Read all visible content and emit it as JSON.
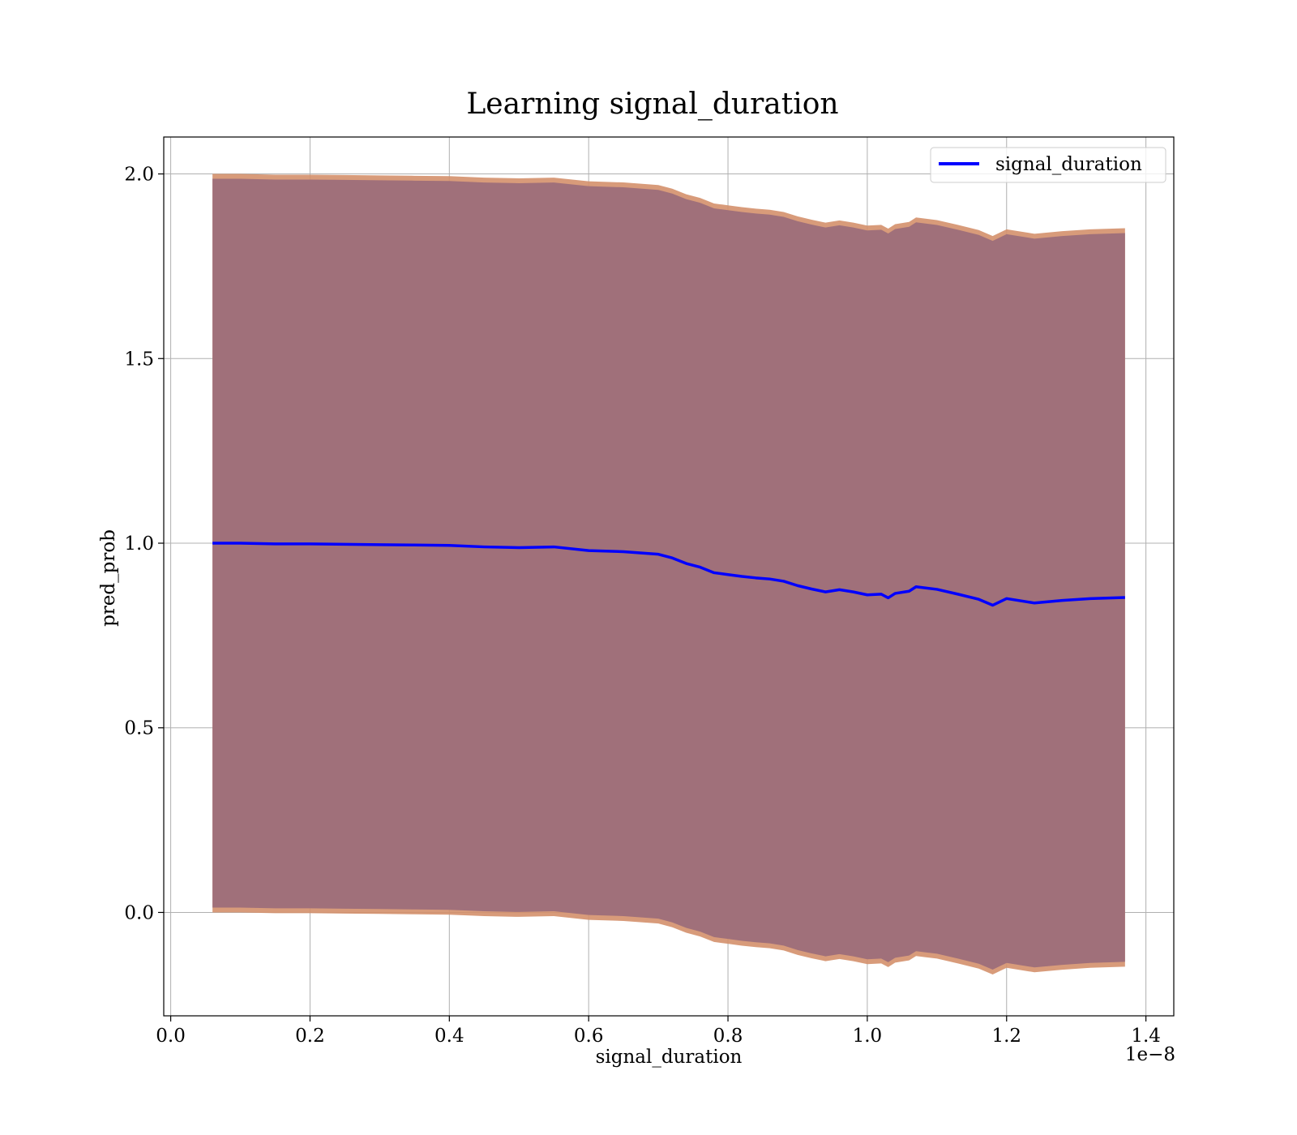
{
  "chart_data": {
    "type": "line",
    "title": "Learning signal_duration",
    "xlabel": "signal_duration",
    "ylabel": "pred_prob",
    "x_offset_label": "1e−8",
    "xlim": [
      -0.01,
      1.44
    ],
    "ylim": [
      -0.28,
      2.1
    ],
    "xticks": [
      0.0,
      0.2,
      0.4,
      0.6,
      0.8,
      1.0,
      1.2,
      1.4
    ],
    "xtick_labels": [
      "0.0",
      "0.2",
      "0.4",
      "0.6",
      "0.8",
      "1.0",
      "1.2",
      "1.4"
    ],
    "yticks": [
      0.0,
      0.5,
      1.0,
      1.5,
      2.0
    ],
    "ytick_labels": [
      "0.0",
      "0.5",
      "1.0",
      "1.5",
      "2.0"
    ],
    "grid": true,
    "legend": {
      "placement": "top-right",
      "entries": [
        "signal_duration"
      ]
    },
    "colors": {
      "line": "#0000ff",
      "band_inner": "#a0707a",
      "band_outer": "#d4906c"
    },
    "x": [
      0.06,
      0.1,
      0.15,
      0.2,
      0.25,
      0.3,
      0.35,
      0.4,
      0.45,
      0.5,
      0.55,
      0.6,
      0.65,
      0.7,
      0.72,
      0.74,
      0.76,
      0.78,
      0.8,
      0.82,
      0.84,
      0.86,
      0.88,
      0.9,
      0.92,
      0.94,
      0.96,
      0.98,
      1.0,
      1.02,
      1.03,
      1.04,
      1.06,
      1.07,
      1.1,
      1.13,
      1.16,
      1.18,
      1.2,
      1.24,
      1.28,
      1.32,
      1.37
    ],
    "series": [
      {
        "name": "signal_duration",
        "values": [
          1.0,
          1.0,
          0.998,
          0.998,
          0.997,
          0.996,
          0.995,
          0.994,
          0.99,
          0.988,
          0.99,
          0.98,
          0.977,
          0.97,
          0.96,
          0.945,
          0.935,
          0.92,
          0.915,
          0.91,
          0.906,
          0.903,
          0.897,
          0.885,
          0.876,
          0.868,
          0.874,
          0.868,
          0.86,
          0.862,
          0.852,
          0.864,
          0.87,
          0.882,
          0.875,
          0.862,
          0.848,
          0.832,
          0.85,
          0.838,
          0.845,
          0.85,
          0.853
        ],
        "upper": [
          2.0,
          2.0,
          1.998,
          1.998,
          1.997,
          1.996,
          1.995,
          1.994,
          1.99,
          1.988,
          1.99,
          1.98,
          1.977,
          1.97,
          1.96,
          1.945,
          1.935,
          1.92,
          1.915,
          1.91,
          1.906,
          1.903,
          1.897,
          1.885,
          1.876,
          1.868,
          1.874,
          1.868,
          1.86,
          1.862,
          1.852,
          1.864,
          1.87,
          1.882,
          1.875,
          1.862,
          1.848,
          1.832,
          1.85,
          1.838,
          1.845,
          1.85,
          1.853
        ],
        "lower": [
          0.0,
          0.0,
          -0.002,
          -0.002,
          -0.003,
          -0.004,
          -0.005,
          -0.006,
          -0.01,
          -0.012,
          -0.01,
          -0.02,
          -0.023,
          -0.03,
          -0.04,
          -0.055,
          -0.065,
          -0.08,
          -0.085,
          -0.09,
          -0.094,
          -0.097,
          -0.103,
          -0.115,
          -0.124,
          -0.132,
          -0.126,
          -0.132,
          -0.14,
          -0.138,
          -0.148,
          -0.136,
          -0.13,
          -0.118,
          -0.125,
          -0.138,
          -0.152,
          -0.168,
          -0.15,
          -0.162,
          -0.155,
          -0.15,
          -0.147
        ]
      }
    ]
  }
}
